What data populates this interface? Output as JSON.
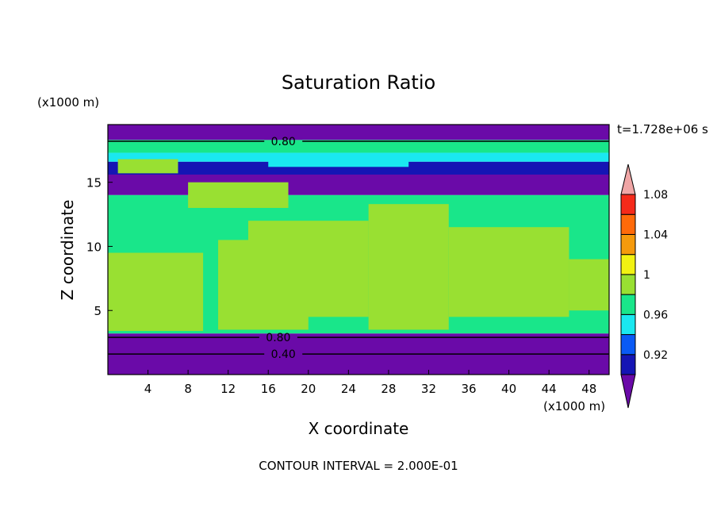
{
  "chart_data": {
    "type": "heatmap",
    "title": "Saturation Ratio",
    "xlabel": "X coordinate",
    "ylabel": "Z coordinate",
    "x_unit": "(x1000 m)",
    "y_unit": "(x1000 m)",
    "time_label": "t=1.728e+06 s",
    "footer": "CONTOUR INTERVAL = 2.000E-01",
    "xlim": [
      0,
      50
    ],
    "ylim": [
      0,
      19.5
    ],
    "x_ticks": [
      4,
      8,
      12,
      16,
      20,
      24,
      28,
      32,
      36,
      40,
      44,
      48
    ],
    "y_ticks": [
      5,
      10,
      15
    ],
    "contour_labels": [
      {
        "text": "0.80",
        "x": 17.5,
        "z": 18.2
      },
      {
        "text": "0.80",
        "x": 17,
        "z": 2.9
      },
      {
        "text": "0.40",
        "x": 17.5,
        "z": 1.6
      }
    ],
    "colorbar": {
      "labels": [
        "0.92",
        "0.96",
        "1",
        "1.04",
        "1.08"
      ],
      "levels": [
        0.9,
        0.92,
        0.94,
        0.96,
        0.98,
        1.0,
        1.02,
        1.04,
        1.06,
        1.08,
        1.1
      ],
      "colors": [
        "#6a0aa8",
        "#1515b4",
        "#0a5af5",
        "#1ae8f0",
        "#19e68a",
        "#99e032",
        "#f2f212",
        "#f59a0c",
        "#ff6a0a",
        "#f52a1a",
        "#f0a6a6"
      ]
    },
    "bands": [
      {
        "z": [
          18.3,
          19.5
        ],
        "color": "#6a0aa8"
      },
      {
        "z": [
          17.3,
          18.3
        ],
        "color": "#19e68a"
      },
      {
        "z": [
          16.6,
          17.3
        ],
        "color": "#1ae8f0"
      },
      {
        "z": [
          15.6,
          16.6
        ],
        "color": "#1515b4"
      },
      {
        "z": [
          14.0,
          15.6
        ],
        "color": "#6a0aa8"
      },
      {
        "z": [
          3.2,
          14.0
        ],
        "color": "#19e68a"
      },
      {
        "z": [
          0,
          3.2
        ],
        "color": "#6a0aa8"
      }
    ],
    "regions": [
      {
        "x": [
          0,
          9.5
        ],
        "z": [
          3.4,
          9.5
        ],
        "color": "#99e032"
      },
      {
        "x": [
          11,
          20
        ],
        "z": [
          3.5,
          10.5
        ],
        "color": "#99e032"
      },
      {
        "x": [
          14,
          26
        ],
        "z": [
          4.5,
          12.0
        ],
        "color": "#99e032"
      },
      {
        "x": [
          26,
          34
        ],
        "z": [
          3.5,
          13.3
        ],
        "color": "#99e032"
      },
      {
        "x": [
          34,
          46
        ],
        "z": [
          4.5,
          11.5
        ],
        "color": "#99e032"
      },
      {
        "x": [
          8,
          18
        ],
        "z": [
          13.0,
          15.0
        ],
        "color": "#99e032"
      },
      {
        "x": [
          46,
          50
        ],
        "z": [
          5.0,
          9.0
        ],
        "color": "#99e032"
      },
      {
        "x": [
          1,
          7
        ],
        "z": [
          15.7,
          16.8
        ],
        "color": "#99e032"
      },
      {
        "x": [
          16,
          30
        ],
        "z": [
          16.2,
          16.9
        ],
        "color": "#1ae8f0"
      }
    ]
  }
}
